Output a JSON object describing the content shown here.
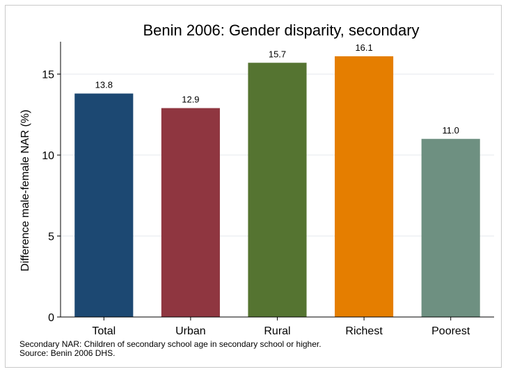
{
  "chart_data": {
    "type": "bar",
    "title": "Benin 2006: Gender disparity, secondary",
    "ylabel": "Difference male-female NAR (%)",
    "xlabel": "",
    "categories": [
      "Total",
      "Urban",
      "Rural",
      "Richest",
      "Poorest"
    ],
    "values": [
      13.8,
      12.9,
      15.7,
      16.1,
      11.0
    ],
    "data_labels": [
      "13.8",
      "12.9",
      "15.7",
      "16.1",
      "11.0"
    ],
    "colors": [
      "#1c4872",
      "#8f3640",
      "#557431",
      "#e57e00",
      "#6e9081"
    ],
    "ylim": [
      0,
      17
    ],
    "yticks": [
      0,
      5,
      10,
      15
    ],
    "ytick_labels": [
      "0",
      "5",
      "10",
      "15"
    ],
    "grid": true,
    "legend": "none"
  },
  "notes": {
    "line1": "Secondary NAR: Children of secondary school age in secondary school or higher.",
    "line2": "Source: Benin 2006 DHS."
  }
}
